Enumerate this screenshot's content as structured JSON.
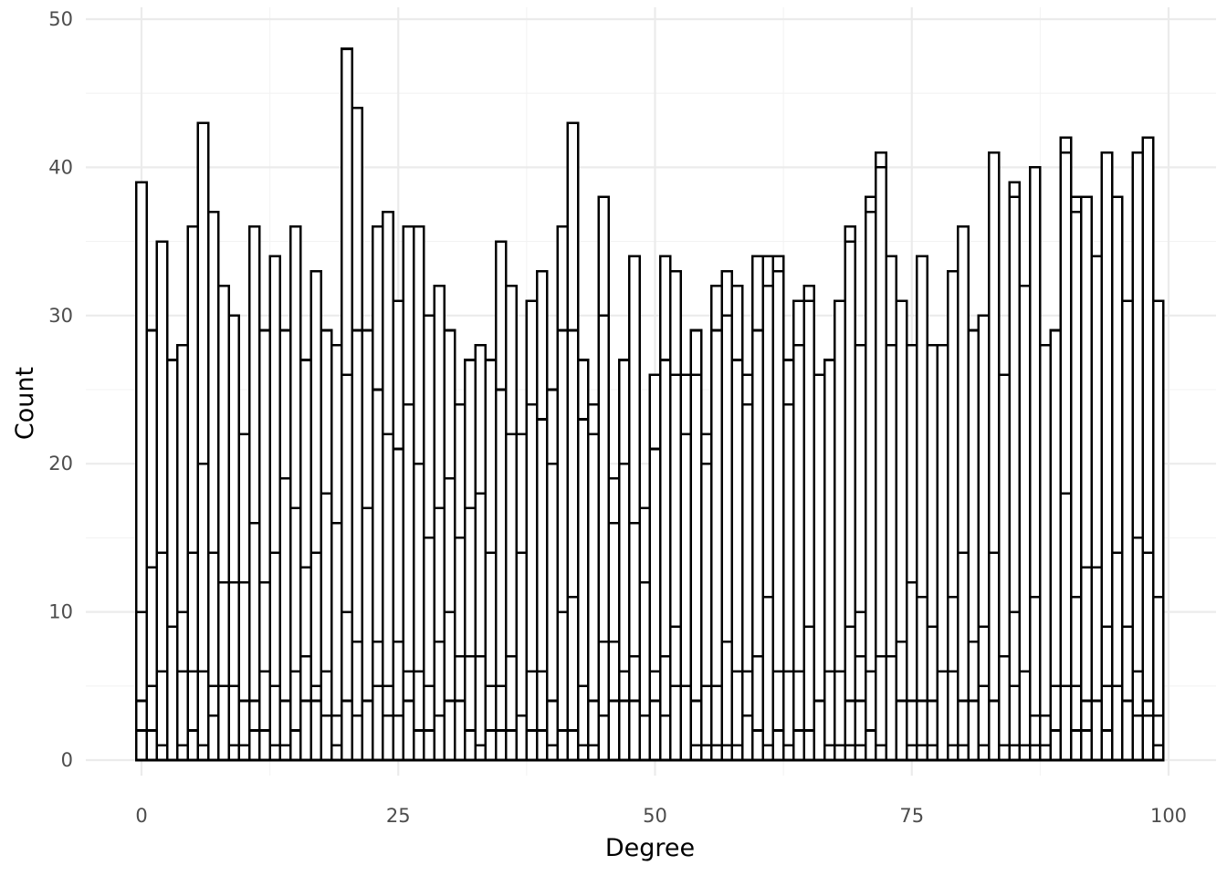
{
  "chart_data": {
    "type": "bar",
    "subtype": "stacked-histogram",
    "title": "",
    "xlabel": "Degree",
    "ylabel": "Count",
    "xlim": [
      -5,
      100.5
    ],
    "ylim": [
      0,
      50
    ],
    "x_ticks": [
      0,
      25,
      50,
      75,
      100
    ],
    "y_ticks": [
      0,
      10,
      20,
      30,
      40,
      50
    ],
    "x_tick_labels": [
      "0",
      "25",
      "50",
      "75",
      "100"
    ],
    "y_tick_labels": [
      "0",
      "10",
      "20",
      "30",
      "40",
      "50"
    ],
    "grid": true,
    "legend": "none",
    "bar_fill": "#ffffff",
    "bar_outline": "#000000",
    "x": [
      0,
      1,
      2,
      3,
      4,
      5,
      6,
      7,
      8,
      9,
      10,
      11,
      12,
      13,
      14,
      15,
      16,
      17,
      18,
      19,
      20,
      21,
      22,
      23,
      24,
      25,
      26,
      27,
      28,
      29,
      30,
      31,
      32,
      33,
      34,
      35,
      36,
      37,
      38,
      39,
      40,
      41,
      42,
      43,
      44,
      45,
      46,
      47,
      48,
      49,
      50,
      51,
      52,
      53,
      54,
      55,
      56,
      57,
      58,
      59,
      60,
      61,
      62,
      63,
      64,
      65,
      66,
      67,
      68,
      69,
      70,
      71,
      72,
      73,
      74,
      75,
      76,
      77,
      78,
      79,
      80,
      81,
      82,
      83,
      84,
      85,
      86,
      87,
      88,
      89,
      90,
      91,
      92,
      93,
      94,
      95,
      96,
      97,
      98,
      99
    ],
    "totals": [
      39,
      29,
      35,
      27,
      28,
      36,
      43,
      37,
      32,
      30,
      22,
      36,
      29,
      34,
      29,
      36,
      27,
      33,
      29,
      28,
      48,
      44,
      29,
      36,
      37,
      31,
      36,
      36,
      30,
      32,
      29,
      24,
      27,
      28,
      27,
      35,
      32,
      22,
      31,
      33,
      25,
      36,
      43,
      27,
      24,
      38,
      19,
      27,
      34,
      17,
      26,
      34,
      33,
      26,
      29,
      22,
      32,
      33,
      32,
      26,
      34,
      34,
      34,
      27,
      31,
      32,
      26,
      27,
      31,
      36,
      28,
      38,
      41,
      34,
      31,
      28,
      34,
      28,
      28,
      33,
      36,
      29,
      30,
      41,
      26,
      39,
      32,
      40,
      28,
      29,
      42,
      38,
      38,
      34,
      41,
      38,
      31,
      41,
      42,
      31
    ],
    "segment_boundaries": [
      [
        2,
        4,
        10
      ],
      [
        2,
        5,
        13
      ],
      [
        1,
        6,
        14
      ],
      [
        9
      ],
      [
        1,
        6,
        10
      ],
      [
        2,
        6,
        14
      ],
      [
        1,
        6,
        20
      ],
      [
        3,
        5,
        14
      ],
      [
        5,
        12
      ],
      [
        1,
        5,
        12
      ],
      [
        1,
        4,
        12
      ],
      [
        2,
        4,
        16
      ],
      [
        2,
        6,
        12
      ],
      [
        1,
        5,
        14
      ],
      [
        1,
        4,
        19
      ],
      [
        2,
        6,
        17
      ],
      [
        4,
        7,
        13
      ],
      [
        4,
        5,
        14
      ],
      [
        3,
        6,
        18
      ],
      [
        1,
        3,
        16
      ],
      [
        4,
        10,
        26
      ],
      [
        3,
        8,
        29
      ],
      [
        4,
        17
      ],
      [
        5,
        8,
        25
      ],
      [
        3,
        5,
        22
      ],
      [
        3,
        8,
        21
      ],
      [
        4,
        6,
        24
      ],
      [
        2,
        6,
        20
      ],
      [
        2,
        5,
        15
      ],
      [
        3,
        8,
        17
      ],
      [
        4,
        10,
        19
      ],
      [
        4,
        7,
        15
      ],
      [
        2,
        7,
        17
      ],
      [
        1,
        7,
        18
      ],
      [
        2,
        5,
        14
      ],
      [
        2,
        5,
        25
      ],
      [
        2,
        7,
        22
      ],
      [
        3,
        14
      ],
      [
        2,
        6,
        24
      ],
      [
        2,
        6,
        23
      ],
      [
        1,
        4,
        20
      ],
      [
        2,
        10,
        29
      ],
      [
        2,
        11,
        29
      ],
      [
        1,
        5,
        23
      ],
      [
        1,
        4,
        22
      ],
      [
        3,
        8,
        30
      ],
      [
        4,
        8,
        16
      ],
      [
        4,
        6,
        20
      ],
      [
        4,
        7,
        16
      ],
      [
        3,
        12
      ],
      [
        4,
        6,
        21
      ],
      [
        3,
        7,
        27
      ],
      [
        5,
        9,
        26
      ],
      [
        5,
        22
      ],
      [
        1,
        4,
        26
      ],
      [
        1,
        5,
        20
      ],
      [
        1,
        5,
        29
      ],
      [
        1,
        8,
        30
      ],
      [
        1,
        6,
        27
      ],
      [
        3,
        6,
        24
      ],
      [
        2,
        7,
        29
      ],
      [
        1,
        11,
        32
      ],
      [
        2,
        6,
        33
      ],
      [
        1,
        6,
        24
      ],
      [
        2,
        6,
        28
      ],
      [
        2,
        9,
        31
      ],
      [
        4
      ],
      [
        1,
        6
      ],
      [
        1,
        6
      ],
      [
        1,
        4,
        9,
        35
      ],
      [
        1,
        4,
        7,
        10
      ],
      [
        2,
        6,
        37
      ],
      [
        1,
        7,
        40
      ],
      [
        7,
        28
      ],
      [
        4,
        8
      ],
      [
        1,
        4,
        12
      ],
      [
        1,
        4,
        11
      ],
      [
        1,
        4,
        9
      ],
      [
        6
      ],
      [
        1,
        6,
        11
      ],
      [
        1,
        4,
        14
      ],
      [
        4,
        8
      ],
      [
        1,
        5,
        9
      ],
      [
        4,
        14
      ],
      [
        1,
        7
      ],
      [
        1,
        5,
        10,
        38
      ],
      [
        1,
        6,
        32
      ],
      [
        1,
        3,
        11
      ],
      [
        1,
        3
      ],
      [
        2,
        5
      ],
      [
        5,
        18,
        41
      ],
      [
        2,
        5,
        11,
        37
      ],
      [
        2,
        4,
        13
      ],
      [
        4,
        13
      ],
      [
        2,
        5,
        9
      ],
      [
        5,
        14
      ],
      [
        4,
        9
      ],
      [
        3,
        6,
        15
      ],
      [
        3,
        4,
        14
      ],
      [
        1,
        3,
        11
      ]
    ]
  }
}
